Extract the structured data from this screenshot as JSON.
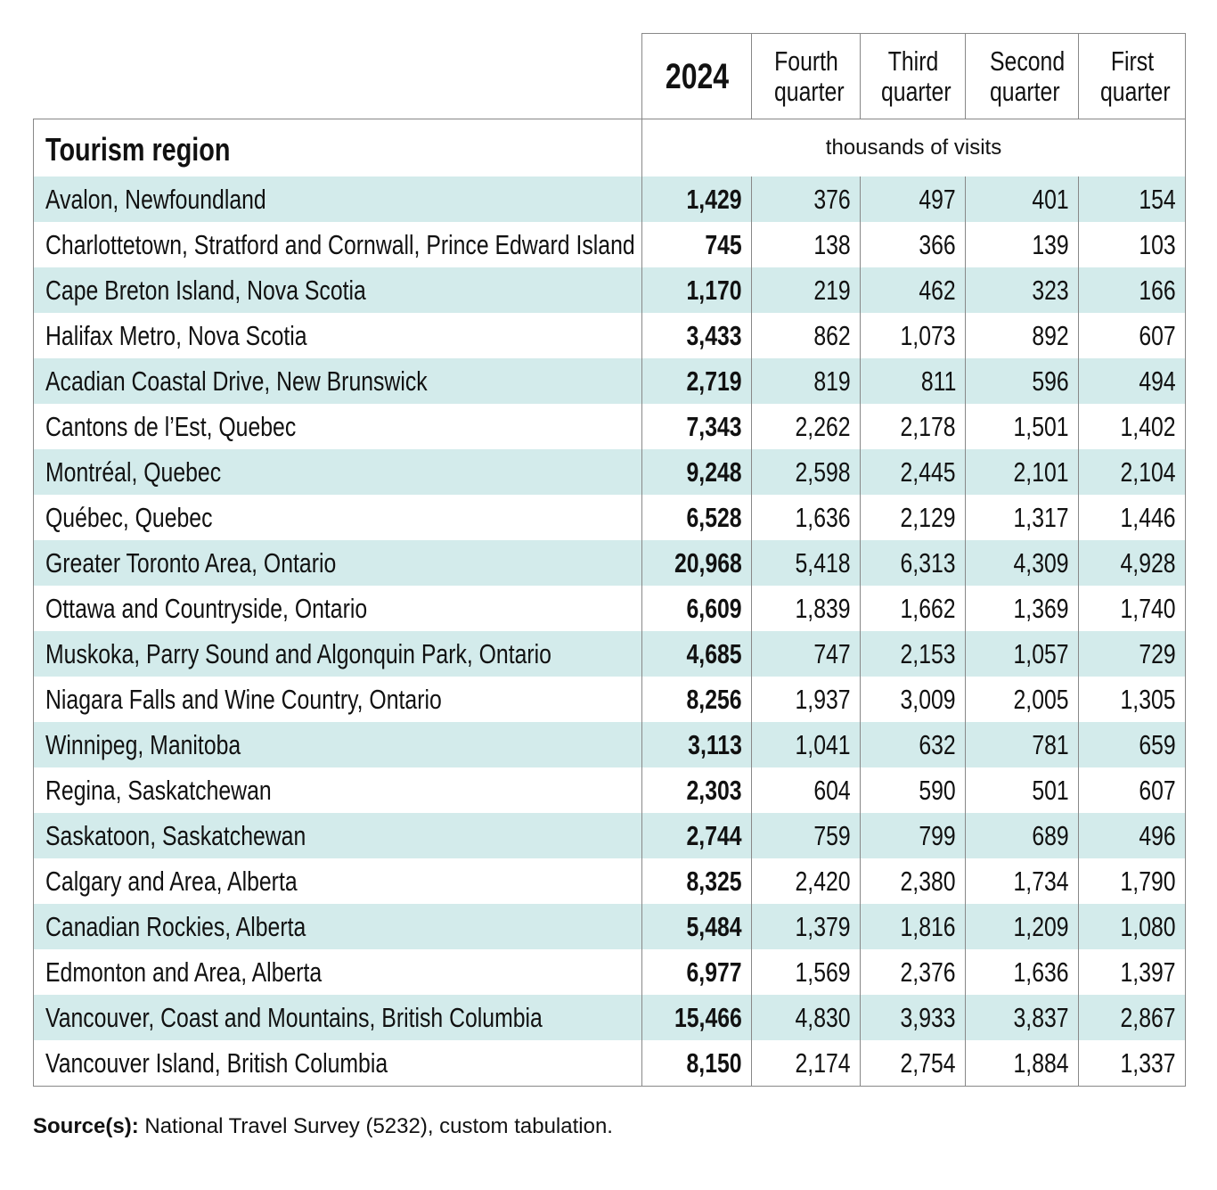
{
  "table": {
    "region_header": "Tourism region",
    "units": "thousands of visits",
    "columns": [
      "2024",
      "Fourth quarter",
      "Third quarter",
      "Second quarter",
      "First quarter"
    ],
    "rows": [
      {
        "region": "Avalon, Newfoundland",
        "values": [
          "1,429",
          "376",
          "497",
          "401",
          "154"
        ]
      },
      {
        "region": "Charlottetown, Stratford and Cornwall, Prince Edward Island",
        "values": [
          "745",
          "138",
          "366",
          "139",
          "103"
        ]
      },
      {
        "region": "Cape Breton Island, Nova Scotia",
        "values": [
          "1,170",
          "219",
          "462",
          "323",
          "166"
        ]
      },
      {
        "region": "Halifax Metro, Nova Scotia",
        "values": [
          "3,433",
          "862",
          "1,073",
          "892",
          "607"
        ]
      },
      {
        "region": "Acadian Coastal Drive, New Brunswick",
        "values": [
          "2,719",
          "819",
          "811",
          "596",
          "494"
        ]
      },
      {
        "region": "Cantons de l’Est, Quebec",
        "values": [
          "7,343",
          "2,262",
          "2,178",
          "1,501",
          "1,402"
        ]
      },
      {
        "region": "Montréal, Quebec",
        "values": [
          "9,248",
          "2,598",
          "2,445",
          "2,101",
          "2,104"
        ]
      },
      {
        "region": "Québec, Quebec",
        "values": [
          "6,528",
          "1,636",
          "2,129",
          "1,317",
          "1,446"
        ]
      },
      {
        "region": "Greater Toronto Area, Ontario",
        "values": [
          "20,968",
          "5,418",
          "6,313",
          "4,309",
          "4,928"
        ]
      },
      {
        "region": "Ottawa and Countryside, Ontario",
        "values": [
          "6,609",
          "1,839",
          "1,662",
          "1,369",
          "1,740"
        ]
      },
      {
        "region": "Muskoka, Parry Sound and Algonquin Park, Ontario",
        "values": [
          "4,685",
          "747",
          "2,153",
          "1,057",
          "729"
        ]
      },
      {
        "region": "Niagara Falls and Wine Country, Ontario",
        "values": [
          "8,256",
          "1,937",
          "3,009",
          "2,005",
          "1,305"
        ]
      },
      {
        "region": "Winnipeg, Manitoba",
        "values": [
          "3,113",
          "1,041",
          "632",
          "781",
          "659"
        ]
      },
      {
        "region": "Regina, Saskatchewan",
        "values": [
          "2,303",
          "604",
          "590",
          "501",
          "607"
        ]
      },
      {
        "region": "Saskatoon, Saskatchewan",
        "values": [
          "2,744",
          "759",
          "799",
          "689",
          "496"
        ]
      },
      {
        "region": "Calgary and Area, Alberta",
        "values": [
          "8,325",
          "2,420",
          "2,380",
          "1,734",
          "1,790"
        ]
      },
      {
        "region": "Canadian Rockies, Alberta",
        "values": [
          "5,484",
          "1,379",
          "1,816",
          "1,209",
          "1,080"
        ]
      },
      {
        "region": "Edmonton and Area, Alberta",
        "values": [
          "6,977",
          "1,569",
          "2,376",
          "1,636",
          "1,397"
        ]
      },
      {
        "region": "Vancouver, Coast and Mountains, British Columbia",
        "values": [
          "15,466",
          "4,830",
          "3,933",
          "3,837",
          "2,867"
        ]
      },
      {
        "region": "Vancouver Island, British Columbia",
        "values": [
          "8,150",
          "2,174",
          "2,754",
          "1,884",
          "1,337"
        ]
      }
    ]
  },
  "source": {
    "label": "Source(s):",
    "text": " National Travel Survey (5232), custom tabulation."
  },
  "colors": {
    "stripe": "#d3ebeb",
    "border": "#888888"
  }
}
